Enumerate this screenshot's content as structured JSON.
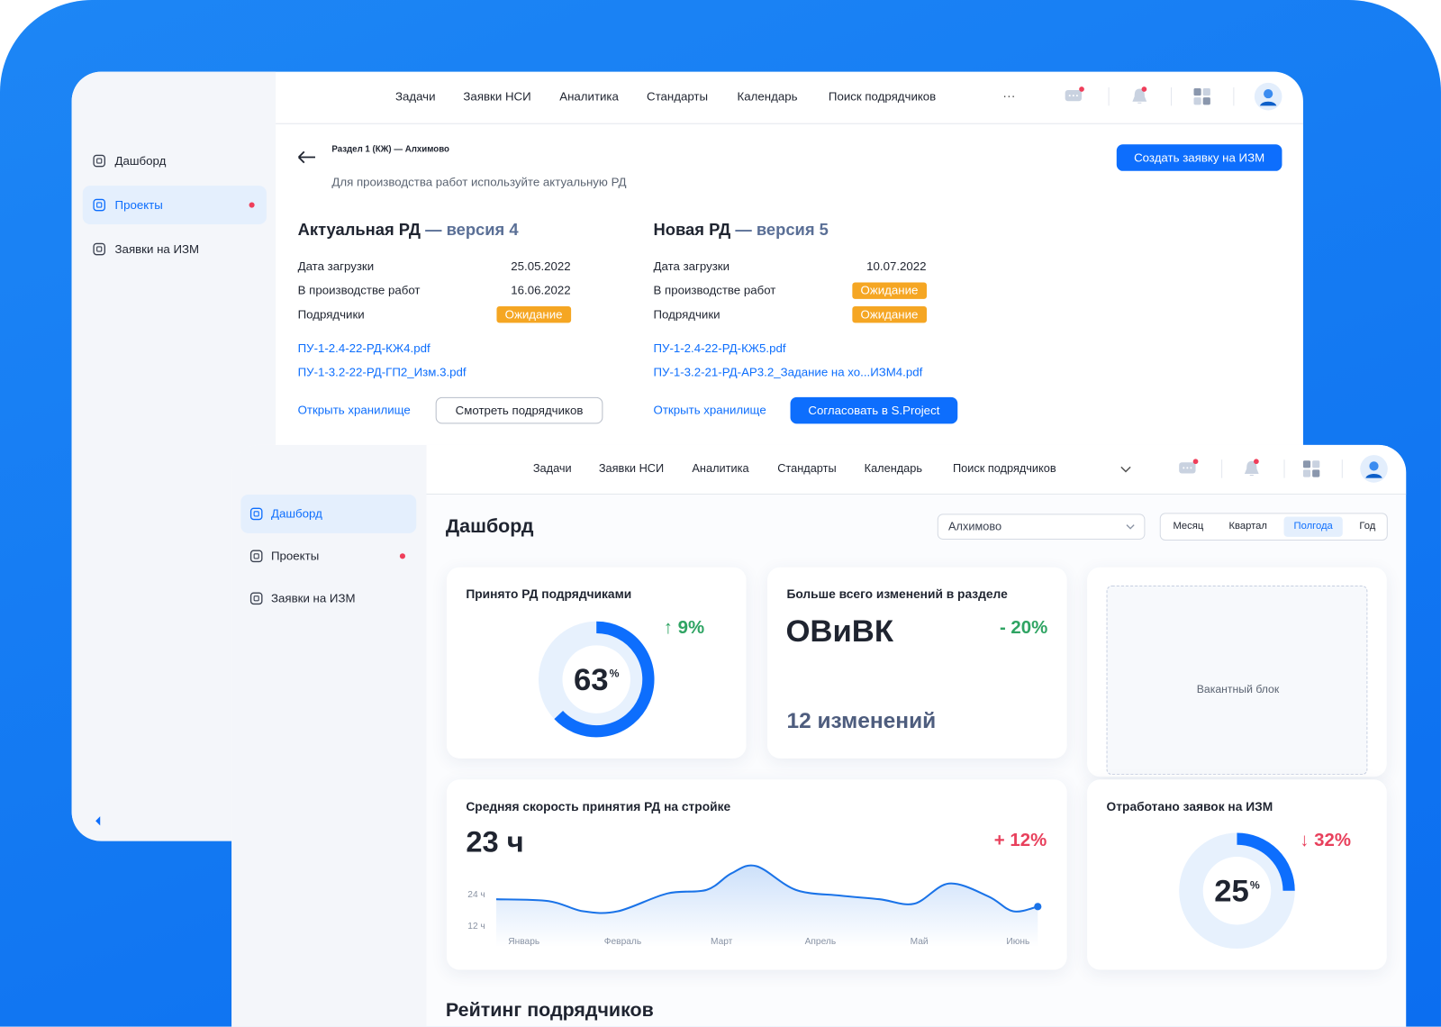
{
  "back_window": {
    "nav": [
      "Задачи",
      "Заявки НСИ",
      "Аналитика",
      "Стандарты",
      "Календарь",
      "Поиск подрядчиков"
    ],
    "nav_more": "···",
    "sidebar": {
      "items": [
        "Дашборд",
        "Проекты",
        "Заявки на ИЗМ"
      ],
      "active": 1,
      "alert": 1
    },
    "breadcrumb": "Раздел 1 (КЖ) — Алхимово",
    "subtitle": "Для производства работ используйте актуальную РД",
    "create_button": "Создать заявку на ИЗМ",
    "panels": [
      {
        "title": "Актуальная РД",
        "version": "— версия 4",
        "rows": [
          {
            "label": "Дата загрузки",
            "value": "25.05.2022"
          },
          {
            "label": "В производстве работ",
            "value": "16.06.2022"
          },
          {
            "label": "Подрядчики",
            "value": "Ожидание"
          }
        ],
        "files": [
          "ПУ-1-2.4-22-РД-КЖ4.pdf",
          "ПУ-1-3.2-22-РД-ГП2_Изм.3.pdf"
        ],
        "storage_link": "Открыть хранилище",
        "button": "Смотреть подрядчиков",
        "primary": false
      },
      {
        "title": "Новая РД",
        "version": "— версия 5",
        "rows": [
          {
            "label": "Дата загрузки",
            "value": "10.07.2022"
          },
          {
            "label": "В производстве работ",
            "value": "Ожидание"
          },
          {
            "label": "Подрядчики",
            "value": "Ожидание"
          }
        ],
        "files": [
          "ПУ-1-2.4-22-РД-КЖ5.pdf",
          "ПУ-1-3.2-21-РД-АР3.2_Задание на хо...ИЗМ4.pdf"
        ],
        "storage_link": "Открыть хранилище",
        "button": "Согласовать в S.Project",
        "primary": true
      }
    ]
  },
  "front_window": {
    "nav": [
      "Задачи",
      "Заявки НСИ",
      "Аналитика",
      "Стандарты",
      "Календарь",
      "Поиск подрядчиков"
    ],
    "sidebar": {
      "items": [
        "Дашборд",
        "Проекты",
        "Заявки на ИЗМ"
      ],
      "active": 0,
      "alert": 1
    },
    "title": "Дашборд",
    "project_select": "Алхимово",
    "periods": {
      "items": [
        "Месяц",
        "Квартал",
        "Полгода",
        "Год"
      ],
      "active": 2
    },
    "cards": {
      "accepted": {
        "title": "Принято РД подрядчиками",
        "percent": 63,
        "unit": "%",
        "change": "↑ 9%",
        "color": "#0d6efd"
      },
      "most_changes": {
        "title": "Больше всего изменений в разделе",
        "section": "ОВиВК",
        "change": "- 20%",
        "count": "12 изменений"
      },
      "vacant": "Вакантный блок",
      "speed": {
        "title": "Средняя скорость принятия РД на стройке",
        "value": "23 ч",
        "change": "+ 12%",
        "chart": {
          "type": "line",
          "color": "#1a73e8",
          "x": [
            -0.28,
            0.25,
            0.6,
            0.95,
            1.45,
            1.85,
            2.1,
            2.35,
            2.75,
            3.2,
            3.6,
            3.95,
            4.3,
            4.7,
            4.95,
            5.2
          ],
          "values": [
            22.2,
            21.5,
            17.6,
            17.6,
            24.4,
            25.8,
            32.1,
            34.9,
            25.8,
            23.6,
            22.2,
            20.5,
            28.2,
            23.3,
            17.6,
            19.4
          ],
          "xlim": [
            -0.28,
            5.3
          ],
          "ylim": [
            4,
            38
          ],
          "xticks": [
            {
              "value": 0,
              "label": "Январь"
            },
            {
              "value": 1,
              "label": "Февраль"
            },
            {
              "value": 2,
              "label": "Март"
            },
            {
              "value": 3,
              "label": "Апрель"
            },
            {
              "value": 4,
              "label": "Май"
            },
            {
              "value": 5,
              "label": "Июнь"
            }
          ],
          "yticks": [
            {
              "value": 24,
              "label": "24 ч"
            },
            {
              "value": 12,
              "label": "12 ч"
            }
          ]
        }
      },
      "processed": {
        "title": "Отработано заявок на ИЗМ",
        "percent": 25,
        "unit": "%",
        "change": "↓ 32%",
        "color": "#0d6efd"
      }
    },
    "rating_title": "Рейтинг подрядчиков"
  }
}
